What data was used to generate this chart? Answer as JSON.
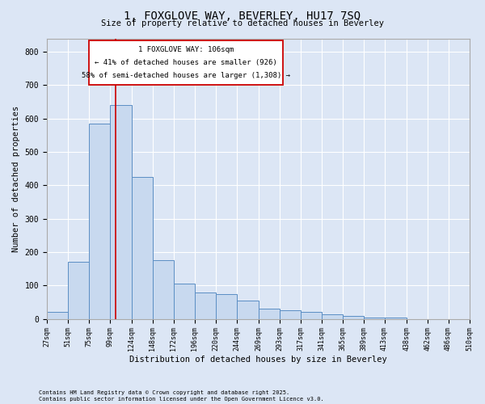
{
  "title": "1, FOXGLOVE WAY, BEVERLEY, HU17 7SQ",
  "subtitle": "Size of property relative to detached houses in Beverley",
  "xlabel": "Distribution of detached houses by size in Beverley",
  "ylabel": "Number of detached properties",
  "footnote1": "Contains HM Land Registry data © Crown copyright and database right 2025.",
  "footnote2": "Contains public sector information licensed under the Open Government Licence v3.0.",
  "bar_color": "#c8d9ef",
  "bar_edge_color": "#5b8ec4",
  "background_color": "#dce6f5",
  "fig_background": "#dce6f5",
  "grid_color": "#ffffff",
  "bins": [
    "27sqm",
    "51sqm",
    "75sqm",
    "99sqm",
    "124sqm",
    "148sqm",
    "172sqm",
    "196sqm",
    "220sqm",
    "244sqm",
    "269sqm",
    "293sqm",
    "317sqm",
    "341sqm",
    "365sqm",
    "389sqm",
    "413sqm",
    "438sqm",
    "462sqm",
    "486sqm",
    "510sqm"
  ],
  "values": [
    20,
    170,
    585,
    640,
    425,
    175,
    105,
    80,
    75,
    55,
    30,
    25,
    20,
    15,
    10,
    5,
    5,
    0,
    0,
    0
  ],
  "bin_edges": [
    27,
    51,
    75,
    99,
    124,
    148,
    172,
    196,
    220,
    244,
    269,
    293,
    317,
    341,
    365,
    389,
    413,
    438,
    462,
    486,
    510
  ],
  "property_size": 106,
  "red_line_color": "#cc0000",
  "annotation_text1": "1 FOXGLOVE WAY: 106sqm",
  "annotation_text2": "← 41% of detached houses are smaller (926)",
  "annotation_text3": "58% of semi-detached houses are larger (1,308) →",
  "ylim": [
    0,
    840
  ],
  "yticks": [
    0,
    100,
    200,
    300,
    400,
    500,
    600,
    700,
    800
  ]
}
